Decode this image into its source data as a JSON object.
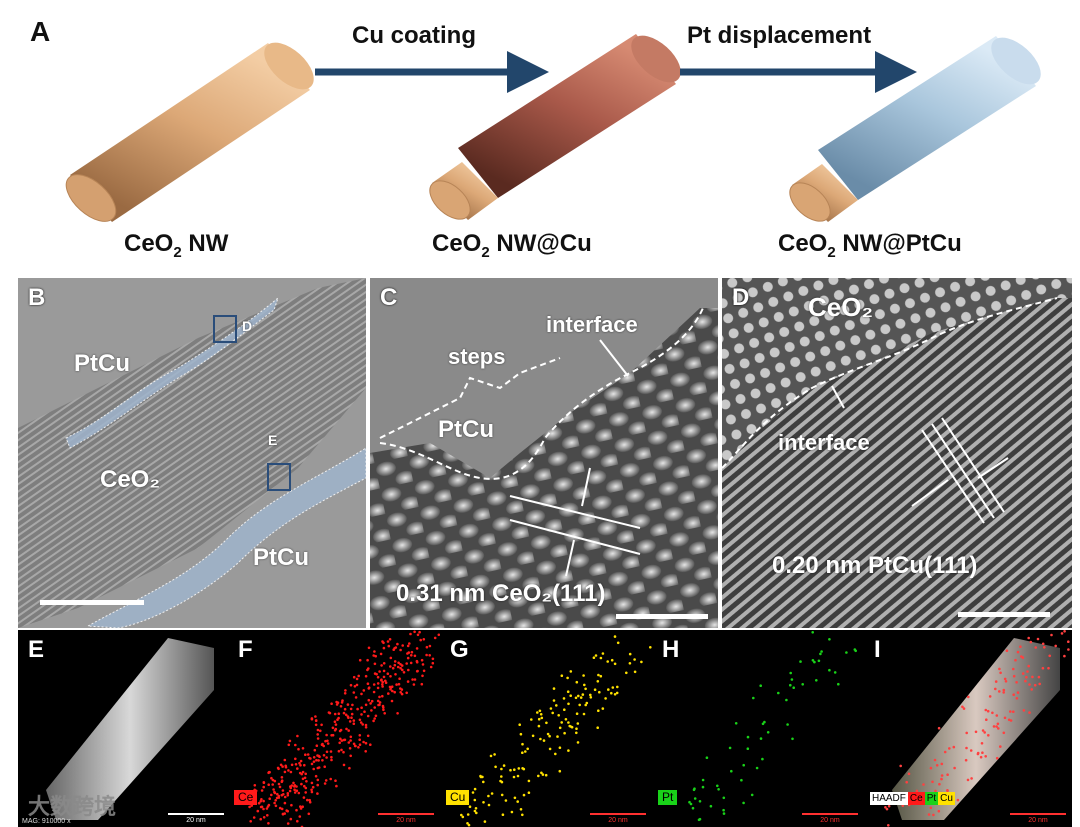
{
  "panel_a": {
    "letter": "A",
    "steps": [
      "Cu coating",
      "Pt displacement"
    ],
    "rods": [
      {
        "prefix": "CeO",
        "sub": "2",
        "suffix": " NW"
      },
      {
        "prefix": "CeO",
        "sub": "2",
        "suffix": " NW@Cu"
      },
      {
        "prefix": "CeO",
        "sub": "2",
        "suffix": " NW@PtCu"
      }
    ],
    "colors": {
      "core": "#d9a270",
      "cu_shell": "#a45a45",
      "ptcu_shell": "#a9c6dc",
      "arrow": "#22466b"
    }
  },
  "panel_b": {
    "letter": "B",
    "labels": {
      "ptcu_top": "PtCu",
      "ceo2": "CeO₂",
      "ptcu_bottom": "PtCu",
      "box_d": "D",
      "box_e": "E"
    }
  },
  "panel_c": {
    "letter": "C",
    "labels": {
      "steps": "steps",
      "interface": "interface",
      "ptcu": "PtCu",
      "spacing": "0.31 nm CeO₂(111)"
    }
  },
  "panel_d": {
    "letter": "D",
    "labels": {
      "ceo2": "CeO₂",
      "interface": "interface",
      "spacing": "0.20 nm PtCu(111)"
    }
  },
  "eds": {
    "panels": [
      {
        "letter": "E",
        "legend": "",
        "color": ""
      },
      {
        "letter": "F",
        "legend": "Ce",
        "color": "#ff1a1a"
      },
      {
        "letter": "G",
        "legend": "Cu",
        "color": "#ffe100"
      },
      {
        "letter": "H",
        "legend": "Pt",
        "color": "#19d219"
      },
      {
        "letter": "I",
        "legend": "HAADF",
        "color": "#ffffff"
      }
    ],
    "overlay_legend": [
      "HAADF",
      "Ce",
      "Pt",
      "Cu"
    ],
    "scale_text": "20 nm",
    "mag_text": "MAG: 910000 x",
    "watermark": "大数跨境"
  }
}
